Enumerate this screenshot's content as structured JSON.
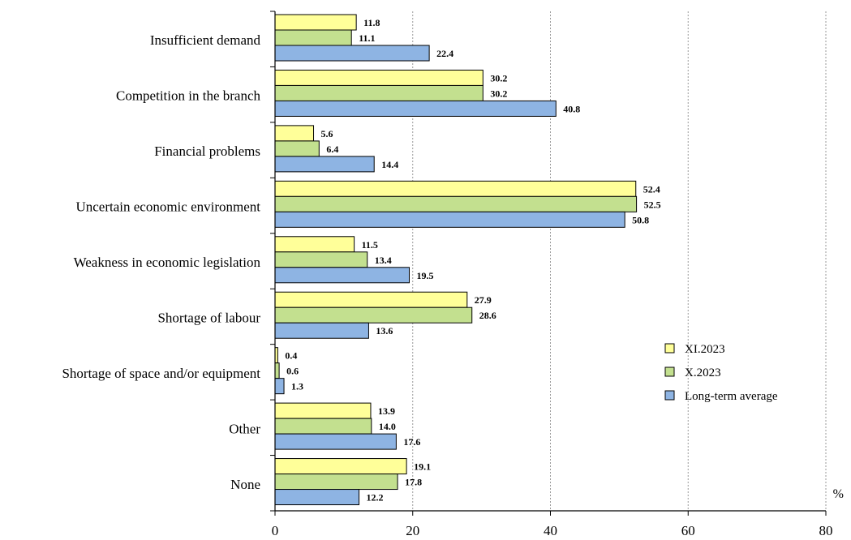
{
  "chart_data": {
    "type": "bar",
    "orientation": "horizontal",
    "title": "",
    "xlabel": "",
    "ylabel": "",
    "unit": "%",
    "xlim": [
      0,
      80
    ],
    "xticks": [
      "0",
      "20",
      "40",
      "60",
      "80"
    ],
    "grid": "vertical-dashed",
    "legend_position": "right",
    "categories": [
      "Insufficient demand",
      "Competition in the branch",
      "Financial problems",
      "Uncertain economic environment",
      "Weakness in economic legislation",
      "Shortage of labour",
      "Shortage of space and/or equipment",
      "Other",
      "None"
    ],
    "series": [
      {
        "name": "XI.2023",
        "color": "#ffff99",
        "values": [
          11.8,
          30.2,
          5.6,
          52.4,
          11.5,
          27.9,
          0.4,
          13.9,
          19.1
        ]
      },
      {
        "name": "X.2023",
        "color": "#c3e08f",
        "values": [
          11.1,
          30.2,
          6.4,
          52.5,
          13.4,
          28.6,
          0.6,
          14.0,
          17.8
        ]
      },
      {
        "name": "Long-term average",
        "color": "#8eb4e3",
        "values": [
          22.4,
          40.8,
          14.4,
          50.8,
          19.5,
          13.6,
          1.3,
          17.6,
          12.2
        ]
      }
    ]
  }
}
